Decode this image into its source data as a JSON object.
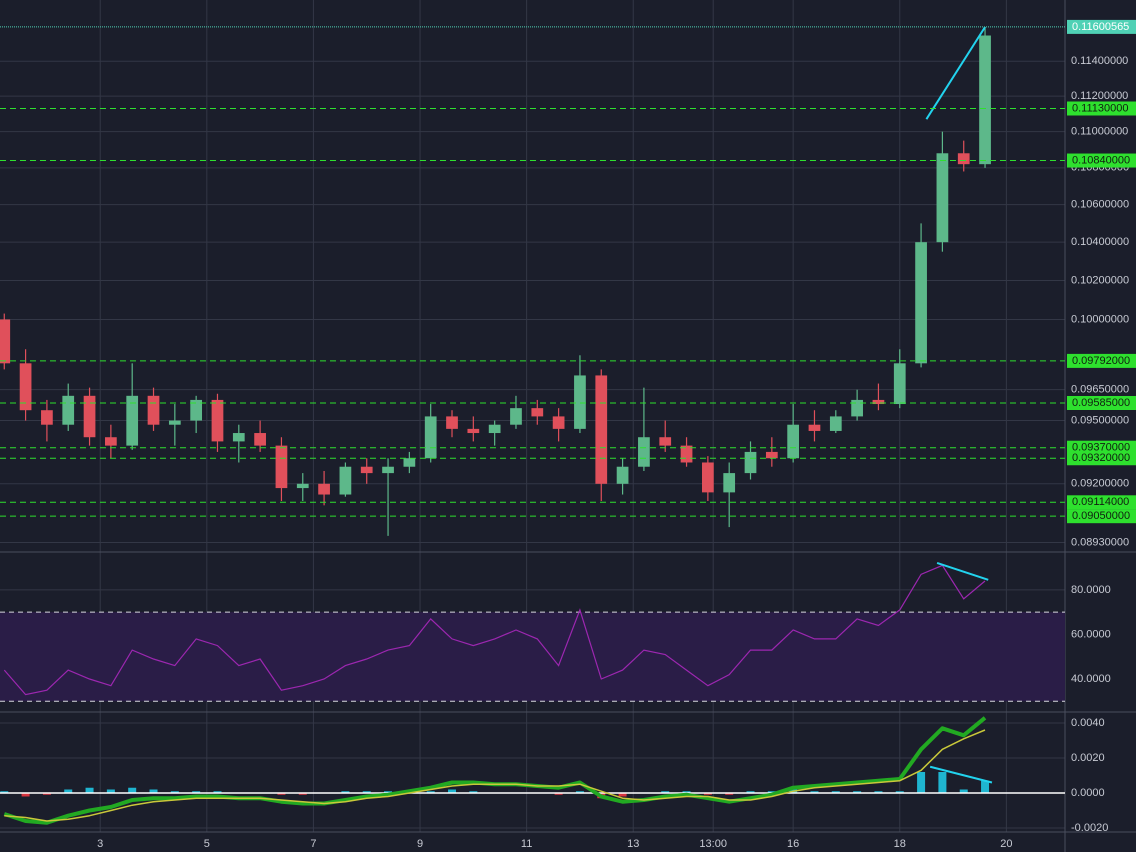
{
  "chart_data": [
    {
      "type": "candlestick",
      "x": [
        1.2,
        1.6,
        2.0,
        2.4,
        2.8,
        3.2,
        3.6,
        4.0,
        4.4,
        4.8,
        5.2,
        5.6,
        6.0,
        6.4,
        6.8,
        7.2,
        7.6,
        8.0,
        8.4,
        8.8,
        9.2,
        9.6,
        10.0,
        10.4,
        10.8,
        11.2,
        11.6,
        12.0,
        12.4,
        12.8,
        13.2,
        13.6,
        14.0,
        14.4,
        14.8,
        15.2,
        15.6,
        16.0,
        16.4,
        16.8,
        17.2,
        17.6,
        18.0,
        18.4,
        18.8,
        19.2,
        19.6
      ],
      "open": [
        0.1,
        0.0978,
        0.0955,
        0.0948,
        0.0962,
        0.0942,
        0.0938,
        0.0962,
        0.0948,
        0.095,
        0.096,
        0.094,
        0.0944,
        0.0938,
        0.0918,
        0.092,
        0.0915,
        0.0928,
        0.0925,
        0.0928,
        0.0932,
        0.0952,
        0.0946,
        0.0944,
        0.0948,
        0.0956,
        0.0952,
        0.0946,
        0.0972,
        0.092,
        0.0928,
        0.0942,
        0.0938,
        0.093,
        0.0916,
        0.0925,
        0.0935,
        0.0932,
        0.0948,
        0.0945,
        0.0952,
        0.096,
        0.0958,
        0.0978,
        0.104,
        0.1088,
        0.1082
      ],
      "high": [
        0.1003,
        0.0985,
        0.096,
        0.0968,
        0.0966,
        0.0948,
        0.0978,
        0.0966,
        0.0958,
        0.0962,
        0.0963,
        0.0948,
        0.095,
        0.0942,
        0.0925,
        0.0926,
        0.093,
        0.0932,
        0.0932,
        0.0935,
        0.0958,
        0.0955,
        0.0952,
        0.095,
        0.0962,
        0.096,
        0.0956,
        0.0982,
        0.0975,
        0.0932,
        0.0966,
        0.095,
        0.0942,
        0.0933,
        0.093,
        0.094,
        0.0942,
        0.0958,
        0.0955,
        0.0955,
        0.0965,
        0.0968,
        0.0985,
        0.105,
        0.11,
        0.1095,
        0.116
      ],
      "low": [
        0.0975,
        0.095,
        0.094,
        0.0945,
        0.0938,
        0.0932,
        0.0936,
        0.0945,
        0.0938,
        0.0944,
        0.0935,
        0.093,
        0.0935,
        0.0912,
        0.0912,
        0.091,
        0.0914,
        0.092,
        0.0896,
        0.0925,
        0.093,
        0.0942,
        0.094,
        0.0938,
        0.0946,
        0.0948,
        0.094,
        0.0944,
        0.0912,
        0.0915,
        0.0926,
        0.0935,
        0.0928,
        0.0912,
        0.09,
        0.0922,
        0.0928,
        0.093,
        0.094,
        0.0944,
        0.095,
        0.0955,
        0.0956,
        0.0976,
        0.1035,
        0.1078,
        0.108
      ],
      "close": [
        0.0978,
        0.0955,
        0.0948,
        0.0962,
        0.0942,
        0.0938,
        0.0962,
        0.0948,
        0.095,
        0.096,
        0.094,
        0.0944,
        0.0938,
        0.0918,
        0.092,
        0.0915,
        0.0928,
        0.0925,
        0.0928,
        0.0932,
        0.0952,
        0.0946,
        0.0944,
        0.0948,
        0.0956,
        0.0952,
        0.0946,
        0.0972,
        0.092,
        0.0928,
        0.0942,
        0.0938,
        0.093,
        0.0916,
        0.0925,
        0.0935,
        0.0932,
        0.0948,
        0.0945,
        0.0952,
        0.096,
        0.0958,
        0.0978,
        0.104,
        0.1088,
        0.1082,
        0.1155
      ],
      "up_color": "#5db88a",
      "down_color": "#e0505b",
      "xlim": [
        1.12,
        21.1
      ],
      "ylim": [
        0.08887,
        0.1176
      ],
      "log_scale": true,
      "grid": true,
      "yticks": [
        {
          "value": 0.0893,
          "label": "0.08930000"
        },
        {
          "value": 0.092,
          "label": "0.09200000"
        },
        {
          "value": 0.095,
          "label": "0.09500000"
        },
        {
          "value": 0.0965,
          "label": "0.09650000"
        },
        {
          "value": 0.1,
          "label": "0.10000000"
        },
        {
          "value": 0.102,
          "label": "0.10200000"
        },
        {
          "value": 0.104,
          "label": "0.10400000"
        },
        {
          "value": 0.106,
          "label": "0.10600000"
        },
        {
          "value": 0.108,
          "label": "0.10800000"
        },
        {
          "value": 0.11,
          "label": "0.11000000"
        },
        {
          "value": 0.112,
          "label": "0.11200000"
        },
        {
          "value": 0.114,
          "label": "0.11400000"
        }
      ],
      "price_lines": [
        {
          "value": 0.11600565,
          "label": "0.11600565",
          "color": "#4fd1b5",
          "dash": false
        },
        {
          "value": 0.1113,
          "label": "0.11130000",
          "color": "#2ee02e",
          "dash": true
        },
        {
          "value": 0.1084,
          "label": "0.10840000",
          "color": "#2ee02e",
          "dash": true
        },
        {
          "value": 0.09792,
          "label": "0.09792000",
          "color": "#2ee02e",
          "dash": true
        },
        {
          "value": 0.09585,
          "label": "0.09585000",
          "color": "#2ee02e",
          "dash": true
        },
        {
          "value": 0.0937,
          "label": "0.09370000",
          "color": "#2ee02e",
          "dash": true
        },
        {
          "value": 0.0932,
          "label": "0.09320000",
          "color": "#2ee02e",
          "dash": true
        },
        {
          "value": 0.09114,
          "label": "0.09114000",
          "color": "#2ee02e",
          "dash": true
        },
        {
          "value": 0.0905,
          "label": "0.09050000",
          "color": "#2ee02e",
          "dash": true
        }
      ],
      "trendline": {
        "x": [
          18.5,
          19.6
        ],
        "y": [
          0.1107,
          0.116
        ],
        "color": "#22d3ee"
      }
    },
    {
      "type": "line",
      "values": [
        44,
        33,
        35,
        44,
        40,
        37,
        53,
        49,
        46,
        58,
        55,
        46,
        49,
        35,
        37,
        40,
        46,
        49,
        53,
        55,
        67,
        58,
        55,
        58,
        62,
        58,
        46,
        71,
        40,
        44,
        53,
        51,
        44,
        37,
        42,
        53,
        53,
        62,
        58,
        58,
        67,
        64,
        71,
        87,
        91,
        76,
        84
      ],
      "color": "#9c27b0",
      "ylim": [
        25.2,
        97
      ],
      "grid": true,
      "yticks": [
        {
          "value": 40,
          "label": "40.0000"
        },
        {
          "value": 60,
          "label": "60.0000"
        },
        {
          "value": 80,
          "label": "80.0000"
        }
      ],
      "bands": [
        30,
        70
      ],
      "band_color": "#2a1d47",
      "trendline": {
        "x": [
          18.7,
          19.66
        ],
        "y": [
          92.1,
          84.5
        ],
        "color": "#22d3ee"
      }
    },
    {
      "type": "macd",
      "lines": [
        {
          "color": "#22a922",
          "width": 4,
          "values": [
            -0.0012,
            -0.0016,
            -0.0017,
            -0.0013,
            -0.001,
            -0.0008,
            -0.0004,
            -0.0003,
            -0.0003,
            -0.0002,
            -0.0002,
            -0.0003,
            -0.0003,
            -0.0005,
            -0.0006,
            -0.0006,
            -0.0004,
            -0.0002,
            -0.0001,
            0.0001,
            0.0003,
            0.0006,
            0.0006,
            0.0005,
            0.0005,
            0.0004,
            0.0003,
            0.0006,
            -0.0002,
            -0.0005,
            -0.0004,
            -0.0002,
            -0.0001,
            -0.0003,
            -0.0005,
            -0.0003,
            -0.0001,
            0.0003,
            0.0004,
            0.0005,
            0.0006,
            0.0007,
            0.0008,
            0.0025,
            0.0037,
            0.0033,
            0.0043
          ]
        },
        {
          "color": "#c9c83a",
          "width": 1.5,
          "values": [
            -0.0013,
            -0.0014,
            -0.0016,
            -0.0015,
            -0.0013,
            -0.001,
            -0.0007,
            -0.0005,
            -0.0004,
            -0.0003,
            -0.0003,
            -0.0003,
            -0.0003,
            -0.0004,
            -0.0005,
            -0.0006,
            -0.0005,
            -0.0003,
            -0.0002,
            0.0,
            0.0002,
            0.0004,
            0.0005,
            0.0005,
            0.0005,
            0.0004,
            0.0004,
            0.0005,
            0.0001,
            -0.0003,
            -0.0004,
            -0.0003,
            -0.0002,
            -0.0002,
            -0.0004,
            -0.0004,
            -0.0002,
            0.0001,
            0.0003,
            0.0004,
            0.0005,
            0.0006,
            0.0007,
            0.0013,
            0.0025,
            0.0031,
            0.0036
          ]
        }
      ],
      "histogram": {
        "values": [
          0.0001,
          -0.0002,
          -0.0001,
          0.0002,
          0.0003,
          0.0002,
          0.0003,
          0.0002,
          0.0001,
          0.0001,
          0.0001,
          0,
          0,
          -0.0001,
          -0.0001,
          0,
          0.0001,
          0.0001,
          0.0001,
          0.0001,
          0.0001,
          0.0002,
          0.0001,
          0,
          0,
          0,
          -0.0001,
          0.0001,
          -0.0003,
          -0.0002,
          0,
          0.0001,
          0.0001,
          -0.0001,
          -0.0001,
          0.0001,
          0.0001,
          0.0002,
          0.0001,
          0.0001,
          0.0001,
          0.0001,
          0.0001,
          0.0012,
          0.0012,
          0.0002,
          0.0007
        ],
        "up_color": "#1fb5d0",
        "down_color": "#d8343f"
      },
      "baseline": 0,
      "baseline_color": "#ffffff",
      "ylim": [
        -0.00223,
        0.00463
      ],
      "grid": true,
      "yticks": [
        {
          "value": -0.002,
          "label": "-0.0020"
        },
        {
          "value": 0,
          "label": "0.0000"
        },
        {
          "value": 0.002,
          "label": "0.0020"
        },
        {
          "value": 0.004,
          "label": "0.0040"
        }
      ],
      "xticks": [
        3,
        5,
        7,
        9,
        11,
        13,
        {
          "value": 14.5,
          "label": "13:00"
        },
        16,
        18,
        20
      ],
      "trendline": {
        "x": [
          18.57,
          19.73
        ],
        "y": [
          0.0015,
          0.0006
        ],
        "color": "#22d3ee"
      }
    }
  ]
}
